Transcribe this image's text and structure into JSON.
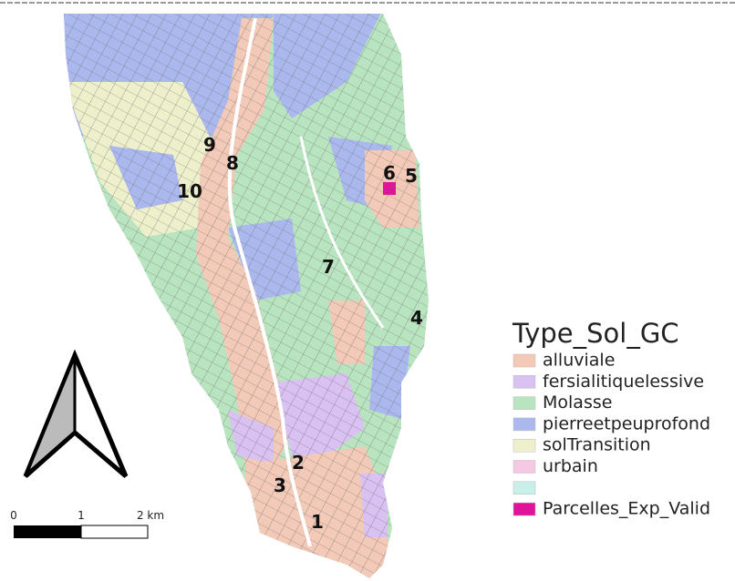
{
  "legend": {
    "title": "Type_Sol_GC",
    "items": [
      {
        "name": "alluviale",
        "color": "#f3c9b8"
      },
      {
        "name": "fersialitiquelessive",
        "color": "#d9c1f2"
      },
      {
        "name": "Molasse",
        "color": "#b9e4c0"
      },
      {
        "name": "pierreetpeuprofond",
        "color": "#aab8ee"
      },
      {
        "name": "solTransition",
        "color": "#eef0cc"
      },
      {
        "name": "urbain",
        "color": "#f4c9e1"
      },
      {
        "name": "Parcelles_Exp_Valid",
        "color": "#e0139a"
      }
    ]
  },
  "parcel_labels": [
    "1",
    "2",
    "3",
    "4",
    "5",
    "6",
    "7",
    "8",
    "9",
    "10"
  ],
  "scale_bar": {
    "labels": [
      "0",
      "1",
      "2 km"
    ]
  }
}
